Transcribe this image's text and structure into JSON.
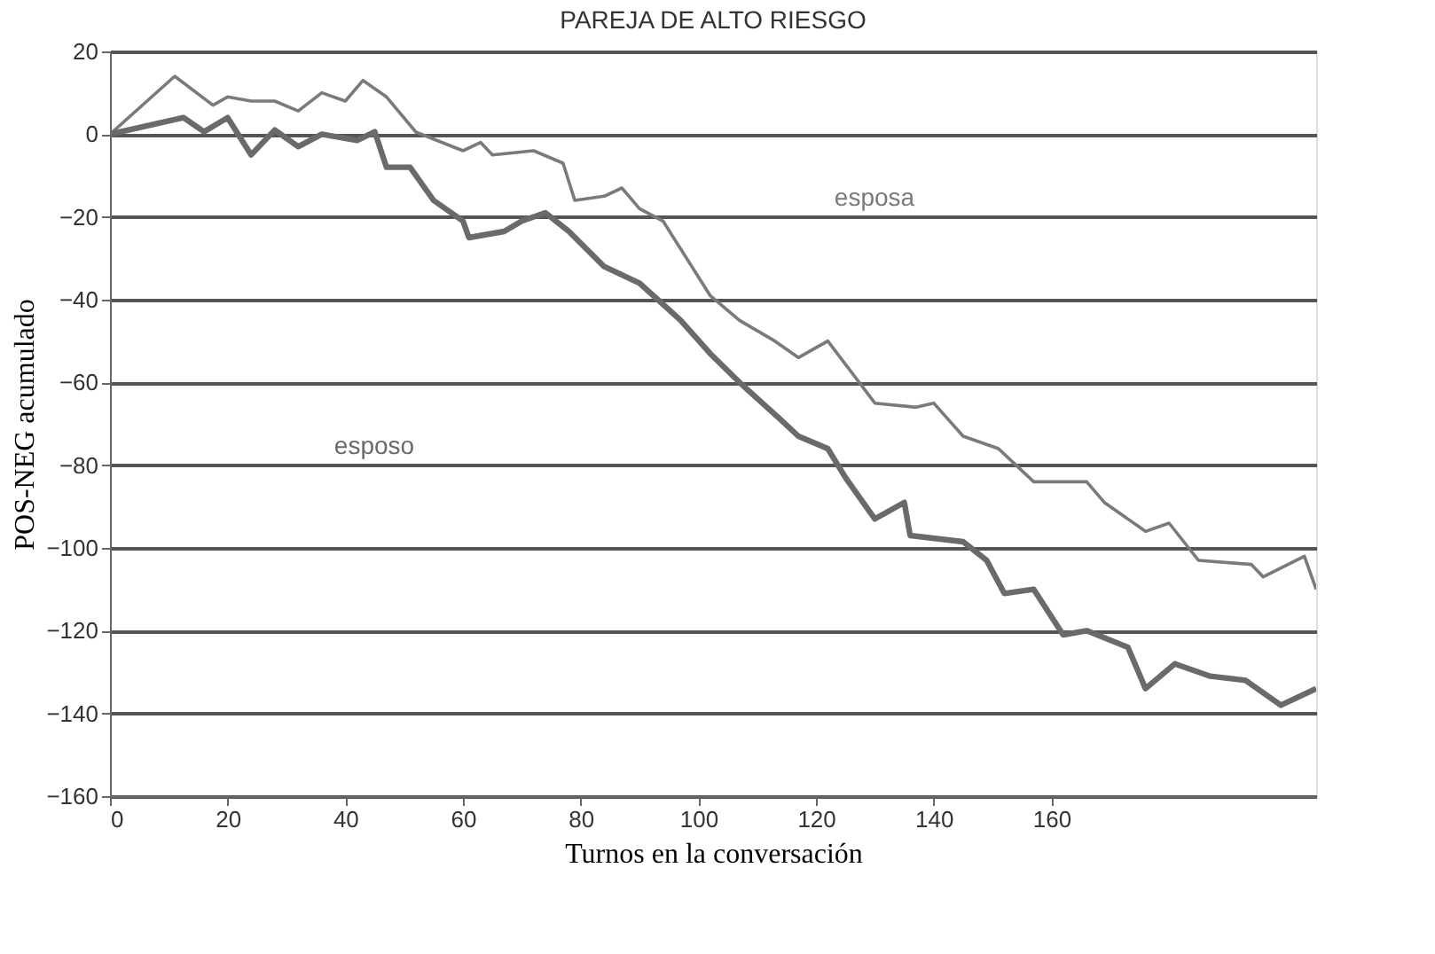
{
  "chart_data": {
    "type": "line",
    "title": "PAREJA DE ALTO RIESGO",
    "xlabel": "Turnos en la conversación",
    "ylabel": "POS-NEG acumulado",
    "xlim": [
      0,
      205
    ],
    "xticks": [
      0,
      20,
      40,
      60,
      80,
      100,
      120,
      140,
      160
    ],
    "ylim": [
      -160,
      20
    ],
    "yticks": [
      -160,
      -140,
      -120,
      -100,
      -80,
      -60,
      -40,
      -20,
      0,
      20
    ],
    "grid": "y",
    "marker": "none",
    "line_style": "solid",
    "series": [
      {
        "name": "esposa",
        "color": "#7a7a7a",
        "x": [
          0,
          11,
          17.5,
          20,
          24,
          28,
          32,
          36,
          40,
          43,
          47,
          52,
          60,
          63,
          65,
          72,
          77,
          79,
          84,
          87,
          90,
          94,
          102,
          107,
          113,
          117,
          122,
          130,
          137,
          140,
          145,
          151,
          157,
          166,
          169,
          176,
          180,
          185,
          194,
          196,
          203,
          205
        ],
        "values": [
          0,
          14,
          7,
          9,
          8,
          8,
          5.6,
          10,
          8,
          13,
          9,
          0.5,
          -4,
          -2,
          -5,
          -4,
          -7,
          -16,
          -15,
          -13,
          -18,
          -21,
          -39,
          -45,
          -50,
          -54,
          -50,
          -65,
          -66,
          -65,
          -73,
          -76,
          -84,
          -84,
          -89,
          -96,
          -94,
          -103,
          -104,
          -107,
          -102,
          -110
        ]
      },
      {
        "name": "esposo",
        "color": "#6a6a6a",
        "x": [
          0,
          12.5,
          16,
          20,
          24,
          28,
          32,
          36,
          42,
          45,
          47,
          51,
          55,
          60,
          61,
          67,
          70,
          74,
          78,
          84,
          90,
          97,
          102,
          107,
          114,
          117,
          122,
          125,
          130,
          135,
          136,
          145,
          149,
          152,
          157,
          162,
          166,
          173,
          176,
          181,
          187,
          193,
          199,
          205
        ],
        "values": [
          0,
          4,
          0.6,
          4,
          -5,
          1,
          -3,
          0,
          -1.5,
          0.6,
          -8,
          -8,
          -16,
          -21,
          -25,
          -23.5,
          -21,
          -19,
          -23.5,
          -32,
          -36,
          -45,
          -53,
          -60,
          -69,
          -73,
          -76,
          -83,
          -93,
          -89,
          -97,
          -98.5,
          -103,
          -111,
          -110,
          -121,
          -120,
          -124,
          -134,
          -128,
          -131,
          -132,
          -138,
          -134
        ]
      }
    ]
  }
}
